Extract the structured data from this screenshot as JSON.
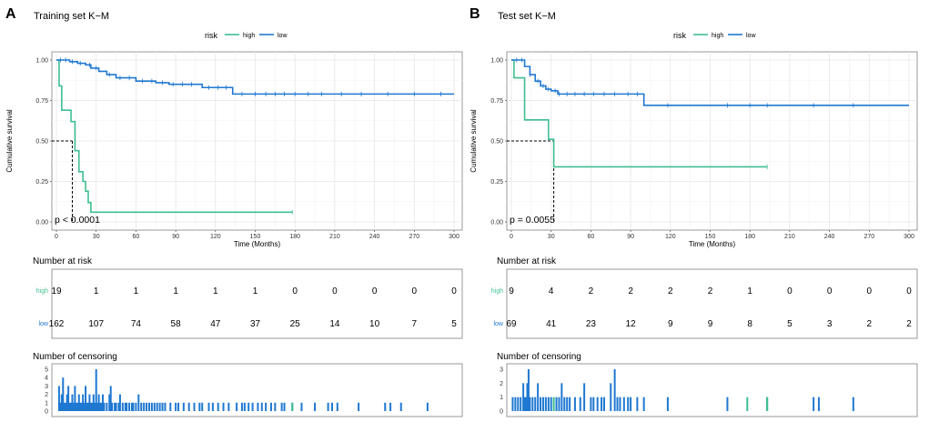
{
  "colors": {
    "high": "#3FBF8F",
    "low": "#1F78D1",
    "grid": "#e6e6e6",
    "border": "#7f7f7f"
  },
  "panels": [
    {
      "letter": "A",
      "title": "Training set K−M",
      "pvalue": "p < 0.0001",
      "censor_section_title": "Number of censoring",
      "chart_data": {
        "type": "line",
        "title": "Training set K−M",
        "xlabel": "Time (Months)",
        "ylabel": "Cumulative survival",
        "xlim": [
          0,
          300
        ],
        "ylim": [
          0,
          1
        ],
        "xticks": [
          0,
          30,
          60,
          90,
          120,
          150,
          180,
          210,
          240,
          270,
          300
        ],
        "yticks": [
          "0.00",
          "0.25",
          "0.50",
          "0.75",
          "1.00"
        ],
        "legend": {
          "title": "risk",
          "entries": [
            "high",
            "low"
          ],
          "placement": "top-center"
        },
        "median_line": {
          "y": 0.5,
          "x": 12
        },
        "series": [
          {
            "name": "high",
            "x": [
              0,
              2,
              4,
              11,
              14,
              17,
              20,
              22,
              24,
              26,
              30,
              178
            ],
            "y": [
              1.0,
              0.84,
              0.69,
              0.62,
              0.44,
              0.31,
              0.25,
              0.19,
              0.12,
              0.06,
              0.06,
              0.06
            ],
            "censor_x": [
              178
            ]
          },
          {
            "name": "low",
            "x": [
              0,
              10,
              16,
              22,
              26,
              32,
              38,
              45,
              60,
              75,
              85,
              100,
              110,
              133,
              300
            ],
            "y": [
              1.0,
              0.99,
              0.98,
              0.97,
              0.95,
              0.93,
              0.91,
              0.89,
              0.87,
              0.86,
              0.85,
              0.85,
              0.83,
              0.79,
              0.79
            ],
            "censor_x": [
              3,
              7,
              12,
              18,
              25,
              30,
              40,
              48,
              55,
              65,
              72,
              80,
              88,
              95,
              102,
              115,
              122,
              128,
              140,
              150,
              158,
              165,
              172,
              180,
              190,
              200,
              215,
              230,
              250,
              270,
              290
            ]
          }
        ]
      },
      "risk_table": {
        "title": "Number at risk",
        "rows": [
          {
            "label": "high",
            "values": [
              "19",
              "1",
              "1",
              "1",
              "1",
              "1",
              "0",
              "0",
              "0",
              "0",
              "0"
            ]
          },
          {
            "label": "low",
            "values": [
              "162",
              "107",
              "74",
              "58",
              "47",
              "37",
              "25",
              "14",
              "10",
              "7",
              "5"
            ]
          }
        ]
      },
      "censoring": {
        "type": "bar",
        "title": "Number of censoring",
        "yticks": [
          "0",
          "1",
          "2",
          "3",
          "4",
          "5"
        ],
        "ylim": [
          0,
          5
        ],
        "bars_low": [
          [
            2,
            3
          ],
          [
            3,
            1
          ],
          [
            4,
            2
          ],
          [
            5,
            4
          ],
          [
            6,
            1
          ],
          [
            7,
            1
          ],
          [
            8,
            2
          ],
          [
            9,
            3
          ],
          [
            10,
            1
          ],
          [
            11,
            1
          ],
          [
            12,
            2
          ],
          [
            13,
            1
          ],
          [
            14,
            3
          ],
          [
            15,
            1
          ],
          [
            16,
            1
          ],
          [
            17,
            2
          ],
          [
            18,
            1
          ],
          [
            19,
            1
          ],
          [
            20,
            2
          ],
          [
            21,
            1
          ],
          [
            22,
            3
          ],
          [
            23,
            1
          ],
          [
            24,
            1
          ],
          [
            25,
            2
          ],
          [
            26,
            1
          ],
          [
            27,
            1
          ],
          [
            28,
            2
          ],
          [
            29,
            1
          ],
          [
            30,
            5
          ],
          [
            31,
            1
          ],
          [
            32,
            2
          ],
          [
            33,
            1
          ],
          [
            34,
            1
          ],
          [
            35,
            2
          ],
          [
            36,
            1
          ],
          [
            38,
            1
          ],
          [
            40,
            2
          ],
          [
            41,
            3
          ],
          [
            42,
            1
          ],
          [
            44,
            1
          ],
          [
            45,
            1
          ],
          [
            47,
            1
          ],
          [
            48,
            2
          ],
          [
            50,
            1
          ],
          [
            52,
            1
          ],
          [
            53,
            1
          ],
          [
            55,
            1
          ],
          [
            57,
            1
          ],
          [
            58,
            1
          ],
          [
            60,
            1
          ],
          [
            62,
            2
          ],
          [
            64,
            1
          ],
          [
            66,
            1
          ],
          [
            68,
            1
          ],
          [
            70,
            1
          ],
          [
            72,
            1
          ],
          [
            74,
            1
          ],
          [
            76,
            1
          ],
          [
            78,
            1
          ],
          [
            80,
            1
          ],
          [
            82,
            1
          ],
          [
            86,
            1
          ],
          [
            90,
            1
          ],
          [
            92,
            1
          ],
          [
            96,
            1
          ],
          [
            100,
            1
          ],
          [
            104,
            1
          ],
          [
            108,
            1
          ],
          [
            110,
            1
          ],
          [
            115,
            1
          ],
          [
            118,
            1
          ],
          [
            122,
            1
          ],
          [
            126,
            1
          ],
          [
            130,
            1
          ],
          [
            136,
            1
          ],
          [
            140,
            1
          ],
          [
            142,
            1
          ],
          [
            145,
            1
          ],
          [
            148,
            1
          ],
          [
            152,
            1
          ],
          [
            155,
            1
          ],
          [
            158,
            1
          ],
          [
            162,
            1
          ],
          [
            165,
            1
          ],
          [
            170,
            1
          ],
          [
            172,
            1
          ],
          [
            178,
            1
          ],
          [
            185,
            1
          ],
          [
            195,
            1
          ],
          [
            205,
            1
          ],
          [
            208,
            1
          ],
          [
            212,
            1
          ],
          [
            228,
            1
          ],
          [
            248,
            1
          ],
          [
            252,
            1
          ],
          [
            260,
            1
          ],
          [
            280,
            1
          ]
        ],
        "bars_high": [
          [
            178,
            1
          ]
        ]
      }
    },
    {
      "letter": "B",
      "title": "Test set K−M",
      "pvalue": "p = 0.0055",
      "censor_section_title": "Number of censoring",
      "chart_data": {
        "type": "line",
        "title": "Test set K−M",
        "xlabel": "Time (Months)",
        "ylabel": "Cumulative survival",
        "xlim": [
          0,
          300
        ],
        "ylim": [
          0,
          1
        ],
        "xticks": [
          0,
          30,
          60,
          90,
          120,
          150,
          180,
          210,
          240,
          270,
          300
        ],
        "yticks": [
          "0.00",
          "0.25",
          "0.50",
          "0.75",
          "1.00"
        ],
        "legend": {
          "title": "risk",
          "entries": [
            "high",
            "low"
          ],
          "placement": "top-center"
        },
        "median_line": {
          "y": 0.5,
          "x": 32
        },
        "series": [
          {
            "name": "high",
            "x": [
              0,
              2,
              10,
              28,
              32,
              193
            ],
            "y": [
              1.0,
              0.89,
              0.63,
              0.51,
              0.34,
              0.34
            ],
            "censor_x": [
              193
            ]
          },
          {
            "name": "low",
            "x": [
              0,
              10,
              14,
              18,
              22,
              26,
              30,
              35,
              40,
              100,
              300
            ],
            "y": [
              1.0,
              0.96,
              0.91,
              0.87,
              0.84,
              0.82,
              0.81,
              0.79,
              0.79,
              0.72,
              0.72
            ],
            "censor_x": [
              4,
              8,
              14,
              20,
              24,
              28,
              33,
              36,
              42,
              48,
              55,
              62,
              70,
              78,
              88,
              95,
              118,
              163,
              180,
              193,
              228,
              258
            ]
          }
        ]
      },
      "risk_table": {
        "title": "Number at risk",
        "rows": [
          {
            "label": "high",
            "values": [
              "9",
              "4",
              "2",
              "2",
              "2",
              "2",
              "1",
              "0",
              "0",
              "0",
              "0"
            ]
          },
          {
            "label": "low",
            "values": [
              "69",
              "41",
              "23",
              "12",
              "9",
              "9",
              "8",
              "5",
              "3",
              "2",
              "2"
            ]
          }
        ]
      },
      "censoring": {
        "type": "bar",
        "title": "Number of censoring",
        "yticks": [
          "0",
          "1",
          "2",
          "3"
        ],
        "ylim": [
          0,
          3
        ],
        "bars_low": [
          [
            1,
            1
          ],
          [
            3,
            1
          ],
          [
            5,
            1
          ],
          [
            7,
            1
          ],
          [
            9,
            2
          ],
          [
            10,
            1
          ],
          [
            11,
            1
          ],
          [
            12,
            2
          ],
          [
            13,
            3
          ],
          [
            14,
            1
          ],
          [
            16,
            1
          ],
          [
            18,
            1
          ],
          [
            20,
            2
          ],
          [
            22,
            1
          ],
          [
            24,
            1
          ],
          [
            26,
            1
          ],
          [
            28,
            1
          ],
          [
            30,
            1
          ],
          [
            34,
            1
          ],
          [
            36,
            1
          ],
          [
            38,
            2
          ],
          [
            40,
            1
          ],
          [
            42,
            1
          ],
          [
            44,
            1
          ],
          [
            48,
            1
          ],
          [
            52,
            1
          ],
          [
            55,
            2
          ],
          [
            60,
            1
          ],
          [
            62,
            1
          ],
          [
            65,
            1
          ],
          [
            68,
            1
          ],
          [
            70,
            1
          ],
          [
            75,
            2
          ],
          [
            78,
            3
          ],
          [
            80,
            1
          ],
          [
            82,
            1
          ],
          [
            85,
            1
          ],
          [
            88,
            1
          ],
          [
            90,
            1
          ],
          [
            95,
            1
          ],
          [
            100,
            1
          ],
          [
            118,
            1
          ],
          [
            163,
            1
          ],
          [
            193,
            1
          ],
          [
            228,
            1
          ],
          [
            232,
            1
          ],
          [
            258,
            1
          ]
        ],
        "bars_high": [
          [
            32,
            1
          ],
          [
            178,
            1
          ],
          [
            193,
            1
          ]
        ]
      }
    }
  ]
}
